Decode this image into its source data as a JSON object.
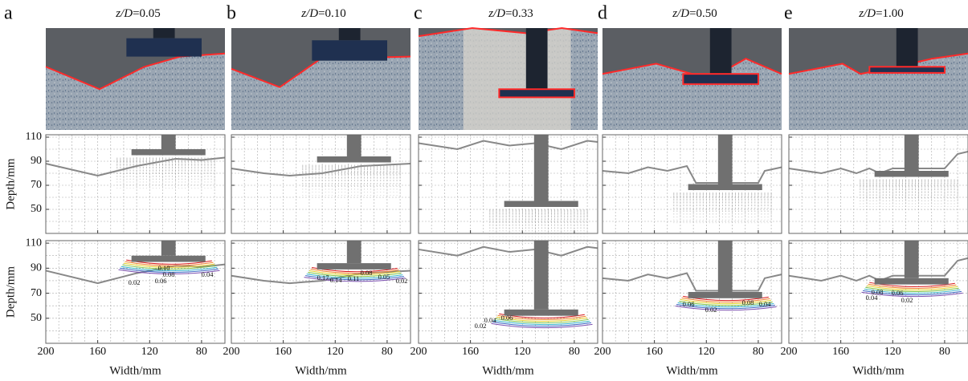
{
  "panels": [
    {
      "label": "a",
      "title": {
        "var": "z/D",
        "value": "=0.05"
      },
      "contour_labels": [
        "0.10",
        "0.08",
        "0.06",
        "0.04",
        "0.02"
      ]
    },
    {
      "label": "b",
      "title": {
        "var": "z/D",
        "value": "=0.10"
      },
      "contour_labels": [
        "0.17",
        "0.14",
        "0.11",
        "0.08",
        "0.05",
        "0.02"
      ]
    },
    {
      "label": "c",
      "title": {
        "var": "z/D",
        "value": "=0.33"
      },
      "contour_labels": [
        "0.04",
        "0.06",
        "0.02"
      ]
    },
    {
      "label": "d",
      "title": {
        "var": "z/D",
        "value": "=0.50"
      },
      "contour_labels": [
        "0.06",
        "0.08",
        "0.04",
        "0.02"
      ]
    },
    {
      "label": "e",
      "title": {
        "var": "z/D",
        "value": "=1.00"
      },
      "contour_labels": [
        "0.08",
        "0.06",
        "0.04",
        "0.02"
      ]
    }
  ],
  "y_axis": {
    "label": "Depth/mm",
    "ticks": [
      110,
      90,
      70,
      50
    ],
    "lim": [
      30,
      112
    ]
  },
  "x_axis": {
    "label": "Width/mm",
    "ticks": [
      200,
      160,
      120,
      80
    ],
    "lim": [
      200,
      62
    ]
  }
}
